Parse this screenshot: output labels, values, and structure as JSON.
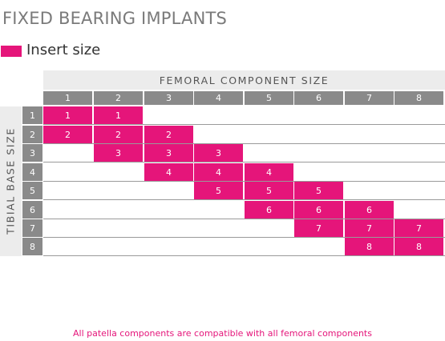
{
  "title": "FIXED BEARING IMPLANTS",
  "legend": {
    "label": "Insert size",
    "color": "#e5157a"
  },
  "table": {
    "femoral_title": "FEMORAL COMPONENT SIZE",
    "tibial_title": "TIBIAL BASE SIZE",
    "femoral_sizes": [
      "1",
      "2",
      "3",
      "4",
      "5",
      "6",
      "7",
      "8"
    ],
    "tibial_sizes": [
      "1",
      "2",
      "3",
      "4",
      "5",
      "6",
      "7",
      "8"
    ],
    "rows": [
      [
        "1",
        "1",
        "",
        "",
        "",
        "",
        "",
        ""
      ],
      [
        "2",
        "2",
        "2",
        "",
        "",
        "",
        "",
        ""
      ],
      [
        "",
        "3",
        "3",
        "3",
        "",
        "",
        "",
        ""
      ],
      [
        "",
        "",
        "4",
        "4",
        "4",
        "",
        "",
        ""
      ],
      [
        "",
        "",
        "",
        "5",
        "5",
        "5",
        "",
        ""
      ],
      [
        "",
        "",
        "",
        "",
        "6",
        "6",
        "6",
        ""
      ],
      [
        "",
        "",
        "",
        "",
        "",
        "7",
        "7",
        "7"
      ],
      [
        "",
        "",
        "",
        "",
        "",
        "",
        "8",
        "8"
      ]
    ]
  },
  "footnote": "All patella components are compatible with all femoral components"
}
